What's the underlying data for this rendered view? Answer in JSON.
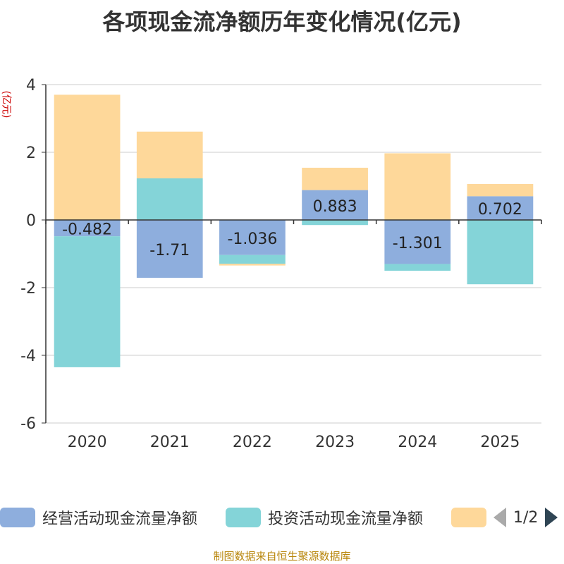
{
  "title": "各项现金流净额历年变化情况(亿元)",
  "y_unit": "(亿元)",
  "source": "制图数据来自恒生聚源数据库",
  "pager": {
    "text": "1/2"
  },
  "colors": {
    "operating": "#8eaedd",
    "investing": "#84d4d8",
    "financing": "#fed89a",
    "axis": "#333333",
    "grid": "#cccccc"
  },
  "legend": [
    {
      "name": "经营活动现金流量净额",
      "color": "#8eaedd"
    },
    {
      "name": "投资活动现金流量净额",
      "color": "#84d4d8"
    },
    {
      "name": "",
      "color": "#fed89a"
    }
  ],
  "chart_data": {
    "type": "bar",
    "stacked": true,
    "title": "各项现金流净额历年变化情况(亿元)",
    "ylabel": "(亿元)",
    "ylim": [
      -6,
      4
    ],
    "yticks": [
      4,
      2,
      0,
      -2,
      -4,
      -6
    ],
    "categories": [
      "2020",
      "2021",
      "2022",
      "2023",
      "2024",
      "2025"
    ],
    "series": [
      {
        "name": "经营活动现金流量净额",
        "values": [
          -0.482,
          -1.71,
          -1.036,
          0.883,
          -1.301,
          0.702
        ],
        "labels": [
          "-0.482",
          "-1.71",
          "-1.036",
          "0.883",
          "-1.301",
          "0.702"
        ]
      },
      {
        "name": "投资活动现金流量净额",
        "values": [
          -3.87,
          1.23,
          -0.26,
          -0.15,
          -0.2,
          -1.9
        ]
      },
      {
        "name": "",
        "values": [
          3.7,
          1.38,
          -0.05,
          0.66,
          1.97,
          0.36
        ]
      }
    ]
  }
}
